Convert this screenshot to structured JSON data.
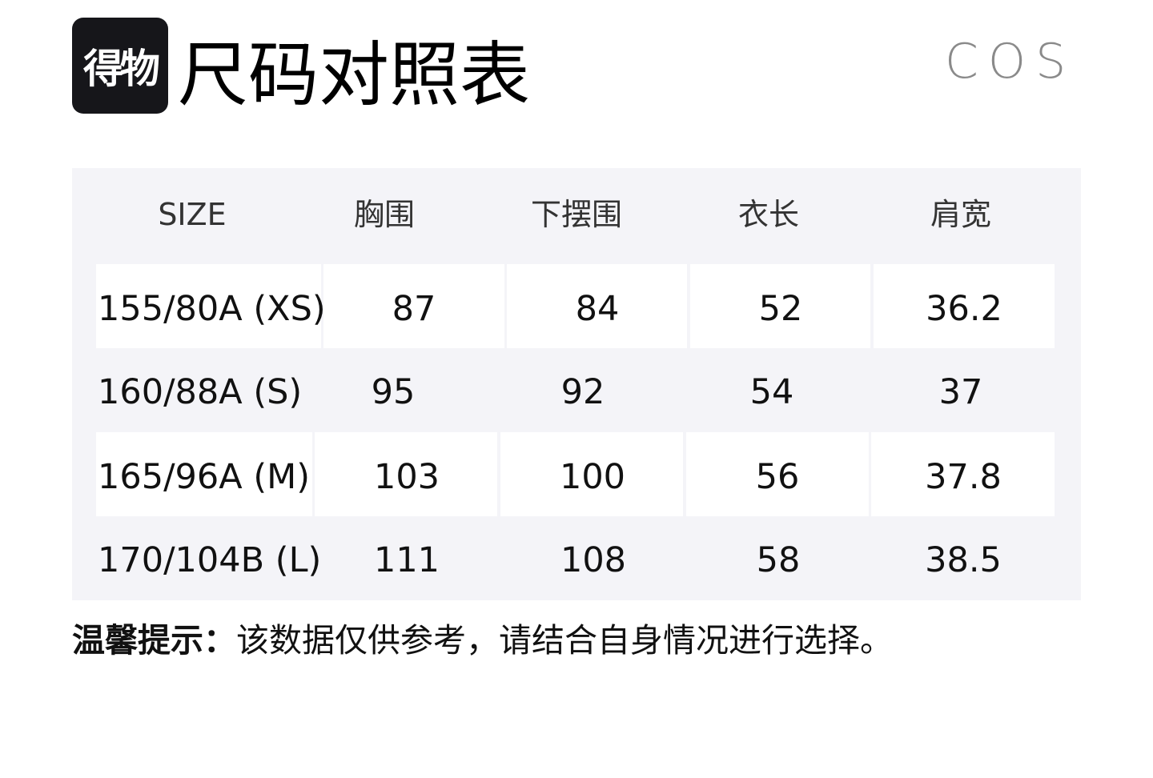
{
  "header": {
    "logo_text": "得物",
    "title": "尺码对照表",
    "brand": "COS"
  },
  "table": {
    "columns": [
      "SIZE",
      "胸围",
      "下摆围",
      "衣长",
      "肩宽"
    ],
    "rows": [
      [
        "155/80A (XS)",
        "87",
        "84",
        "52",
        "36.2"
      ],
      [
        "160/88A (S)",
        "95",
        "92",
        "54",
        "37"
      ],
      [
        "165/96A (M)",
        "103",
        "100",
        "56",
        "37.8"
      ],
      [
        "170/104B (L)",
        "111",
        "108",
        "58",
        "38.5"
      ]
    ]
  },
  "note": {
    "label": "温馨提示：",
    "text": "该数据仅供参考，请结合自身情况进行选择。"
  },
  "colors": {
    "table_bg": "#f4f4f8",
    "logo_bg": "#16161a",
    "brand": "#8a8a8a"
  }
}
